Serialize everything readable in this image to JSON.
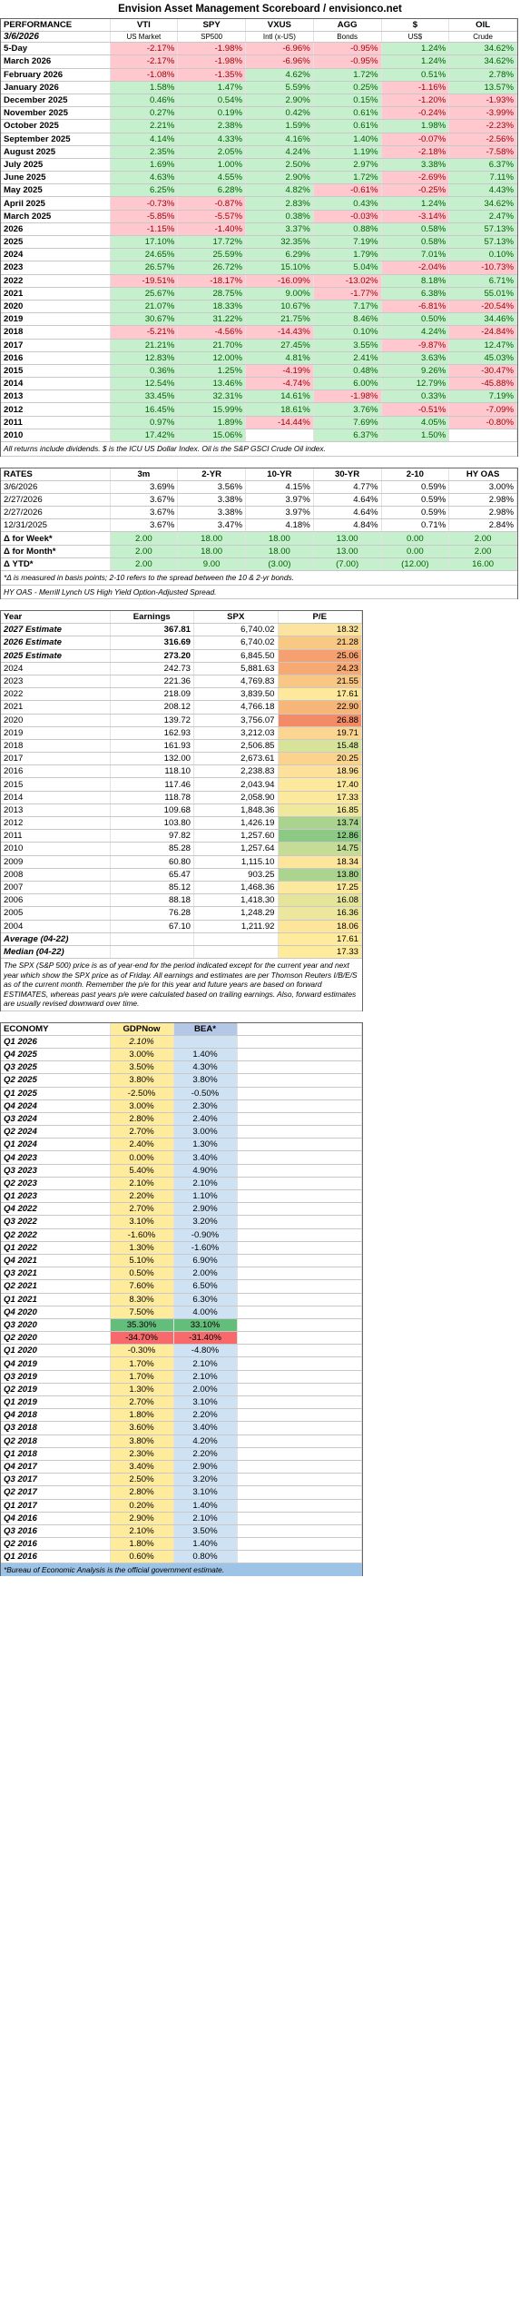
{
  "title": "Envision Asset Management Scoreboard / envisionco.net",
  "performance": {
    "headers": [
      "PERFORMANCE",
      "VTI",
      "SPY",
      "VXUS",
      "AGG",
      "$",
      "OIL"
    ],
    "subheaders": [
      "3/6/2026",
      "US Market",
      "SP500",
      "Intl (x-US)",
      "Bonds",
      "US$",
      "Crude"
    ],
    "rows": [
      [
        "5-Day",
        "-2.17%",
        "-1.98%",
        "-6.96%",
        "-0.95%",
        "1.24%",
        "34.62%"
      ],
      [
        "March 2026",
        "-2.17%",
        "-1.98%",
        "-6.96%",
        "-0.95%",
        "1.24%",
        "34.62%"
      ],
      [
        "February 2026",
        "-1.08%",
        "-1.35%",
        "4.62%",
        "1.72%",
        "0.51%",
        "2.78%"
      ],
      [
        "January 2026",
        "1.58%",
        "1.47%",
        "5.59%",
        "0.25%",
        "-1.16%",
        "13.57%"
      ],
      [
        "December 2025",
        "0.46%",
        "0.54%",
        "2.90%",
        "0.15%",
        "-1.20%",
        "-1.93%"
      ],
      [
        "November 2025",
        "0.27%",
        "0.19%",
        "0.42%",
        "0.61%",
        "-0.24%",
        "-3.99%"
      ],
      [
        "October 2025",
        "2.21%",
        "2.38%",
        "1.59%",
        "0.61%",
        "1.98%",
        "-2.23%"
      ],
      [
        "September 2025",
        "4.14%",
        "4.33%",
        "4.16%",
        "1.40%",
        "-0.07%",
        "-2.56%"
      ],
      [
        "August 2025",
        "2.35%",
        "2.05%",
        "4.24%",
        "1.19%",
        "-2.18%",
        "-7.58%"
      ],
      [
        "July 2025",
        "1.69%",
        "1.00%",
        "2.50%",
        "2.97%",
        "3.38%",
        "6.37%"
      ],
      [
        "June 2025",
        "4.63%",
        "4.55%",
        "2.90%",
        "1.72%",
        "-2.69%",
        "7.11%"
      ],
      [
        "May 2025",
        "6.25%",
        "6.28%",
        "4.82%",
        "-0.61%",
        "-0.25%",
        "4.43%"
      ],
      [
        "April 2025",
        "-0.73%",
        "-0.87%",
        "2.83%",
        "0.43%",
        "1.24%",
        "34.62%"
      ],
      [
        "March 2025",
        "-5.85%",
        "-5.57%",
        "0.38%",
        "-0.03%",
        "-3.14%",
        "2.47%"
      ],
      [
        "2026",
        "-1.15%",
        "-1.40%",
        "3.37%",
        "0.88%",
        "0.58%",
        "57.13%"
      ],
      [
        "2025",
        "17.10%",
        "17.72%",
        "32.35%",
        "7.19%",
        "0.58%",
        "57.13%"
      ],
      [
        "2024",
        "24.65%",
        "25.59%",
        "6.29%",
        "1.79%",
        "7.01%",
        "0.10%"
      ],
      [
        "2023",
        "26.57%",
        "26.72%",
        "15.10%",
        "5.04%",
        "-2.04%",
        "-10.73%"
      ],
      [
        "2022",
        "-19.51%",
        "-18.17%",
        "-16.09%",
        "-13.02%",
        "8.18%",
        "6.71%"
      ],
      [
        "2021",
        "25.67%",
        "28.75%",
        "9.00%",
        "-1.77%",
        "6.38%",
        "55.01%"
      ],
      [
        "2020",
        "21.07%",
        "18.33%",
        "10.67%",
        "7.17%",
        "-6.81%",
        "-20.54%"
      ],
      [
        "2019",
        "30.67%",
        "31.22%",
        "21.75%",
        "8.46%",
        "0.50%",
        "34.46%"
      ],
      [
        "2018",
        "-5.21%",
        "-4.56%",
        "-14.43%",
        "0.10%",
        "4.24%",
        "-24.84%"
      ],
      [
        "2017",
        "21.21%",
        "21.70%",
        "27.45%",
        "3.55%",
        "-9.87%",
        "12.47%"
      ],
      [
        "2016",
        "12.83%",
        "12.00%",
        "4.81%",
        "2.41%",
        "3.63%",
        "45.03%"
      ],
      [
        "2015",
        "0.36%",
        "1.25%",
        "-4.19%",
        "0.48%",
        "9.26%",
        "-30.47%"
      ],
      [
        "2014",
        "12.54%",
        "13.46%",
        "-4.74%",
        "6.00%",
        "12.79%",
        "-45.88%"
      ],
      [
        "2013",
        "33.45%",
        "32.31%",
        "14.61%",
        "-1.98%",
        "0.33%",
        "7.19%"
      ],
      [
        "2012",
        "16.45%",
        "15.99%",
        "18.61%",
        "3.76%",
        "-0.51%",
        "-7.09%"
      ],
      [
        "2011",
        "0.97%",
        "1.89%",
        "-14.44%",
        "7.69%",
        "4.05%",
        "-0.80%"
      ],
      [
        "2010",
        "17.42%",
        "15.06%",
        "",
        "6.37%",
        "1.50%",
        ""
      ]
    ],
    "note": "All returns include dividends. $ is the ICU US Dollar Index. Oil is the S&P GSCI Crude Oil index."
  },
  "rates": {
    "headers": [
      "RATES",
      "3m",
      "2-YR",
      "10-YR",
      "30-YR",
      "2-10",
      "HY OAS"
    ],
    "rows": [
      [
        "3/6/2026",
        "3.69%",
        "3.56%",
        "4.15%",
        "4.77%",
        "0.59%",
        "3.00%"
      ],
      [
        "2/27/2026",
        "3.67%",
        "3.38%",
        "3.97%",
        "4.64%",
        "0.59%",
        "2.98%"
      ],
      [
        "2/27/2026",
        "3.67%",
        "3.38%",
        "3.97%",
        "4.64%",
        "0.59%",
        "2.98%"
      ],
      [
        "12/31/2025",
        "3.67%",
        "3.47%",
        "4.18%",
        "4.84%",
        "0.71%",
        "2.84%"
      ]
    ],
    "delta_rows": [
      [
        "Δ for Week*",
        "2.00",
        "18.00",
        "18.00",
        "13.00",
        "0.00",
        "2.00"
      ],
      [
        "Δ for Month*",
        "2.00",
        "18.00",
        "18.00",
        "13.00",
        "0.00",
        "2.00"
      ],
      [
        "Δ YTD*",
        "2.00",
        "9.00",
        "(3.00)",
        "(7.00)",
        "(12.00)",
        "16.00"
      ]
    ],
    "note1": "*Δ is measured in basis points; 2-10 refers to the spread between the 10 & 2-yr bonds.",
    "note2": "HY OAS - Merrill Lynch US High Yield Option-Adjusted Spread."
  },
  "earnings": {
    "headers": [
      "Year",
      "Earnings",
      "SPX",
      "P/E"
    ],
    "rows": [
      [
        "2027 Estimate",
        "367.81",
        "6,740.02",
        "18.32",
        "#fbe4a0",
        true
      ],
      [
        "2026 Estimate",
        "316.69",
        "6,740.02",
        "21.28",
        "#f9c984",
        true
      ],
      [
        "2025 Estimate",
        "273.20",
        "6,845.50",
        "25.06",
        "#f5a06e",
        true
      ],
      [
        "2024",
        "242.73",
        "5,881.63",
        "24.23",
        "#f6a972",
        false
      ],
      [
        "2023",
        "221.36",
        "4,769.83",
        "21.55",
        "#f9c784",
        false
      ],
      [
        "2022",
        "218.09",
        "3,839.50",
        "17.61",
        "#fde89c",
        false
      ],
      [
        "2021",
        "208.12",
        "4,766.18",
        "22.90",
        "#f7b679",
        false
      ],
      [
        "2020",
        "139.72",
        "3,756.07",
        "26.88",
        "#f28b66",
        false
      ],
      [
        "2019",
        "162.93",
        "3,212.03",
        "19.71",
        "#fcd690",
        false
      ],
      [
        "2018",
        "161.93",
        "2,506.85",
        "15.48",
        "#d8e39a",
        false
      ],
      [
        "2017",
        "132.00",
        "2,673.61",
        "20.25",
        "#fbd38e",
        false
      ],
      [
        "2016",
        "118.10",
        "2,238.83",
        "18.96",
        "#fde19a",
        false
      ],
      [
        "2015",
        "117.46",
        "2,043.94",
        "17.40",
        "#fde99d",
        false
      ],
      [
        "2014",
        "118.78",
        "2,058.90",
        "17.33",
        "#fde99d",
        false
      ],
      [
        "2013",
        "109.68",
        "1,848.36",
        "16.85",
        "#f0e89c",
        false
      ],
      [
        "2012",
        "103.80",
        "1,426.19",
        "13.74",
        "#a9d38e",
        false
      ],
      [
        "2011",
        "97.82",
        "1,257.60",
        "12.86",
        "#8cc985",
        false
      ],
      [
        "2010",
        "85.28",
        "1,257.64",
        "14.75",
        "#c4dc95",
        false
      ],
      [
        "2009",
        "60.80",
        "1,115.10",
        "18.34",
        "#fde59c",
        false
      ],
      [
        "2008",
        "65.47",
        "903.25",
        "13.80",
        "#abd48f",
        false
      ],
      [
        "2007",
        "85.12",
        "1,468.36",
        "17.25",
        "#fde99d",
        false
      ],
      [
        "2006",
        "88.18",
        "1,418.30",
        "16.08",
        "#e5e49b",
        false
      ],
      [
        "2005",
        "76.28",
        "1,248.29",
        "16.36",
        "#ece79c",
        false
      ],
      [
        "2004",
        "67.10",
        "1,211.92",
        "18.06",
        "#fde59c",
        false
      ]
    ],
    "average_label": "Average (04-22)",
    "average_value": "17.61",
    "median_label": "Median (04-22)",
    "median_value": "17.33",
    "note": "The SPX (S&P 500) price is as of year-end for the period indicated except for the current year and next year which show the SPX price as of Friday. All earnings and estimates are per Thomson Reuters I/B/E/S as of the current month. Remember the p/e for this year and future years are based on forward ESTIMATES, whereas past years p/e were calculated based on trailing earnings. Also, forward estimates are usually revised downward over time."
  },
  "economy": {
    "headers": [
      "ECONOMY",
      "GDPNow",
      "BEA*"
    ],
    "rows": [
      [
        "Q1 2026",
        "2.10%",
        ""
      ],
      [
        "Q4 2025",
        "3.00%",
        "1.40%"
      ],
      [
        "Q3 2025",
        "3.50%",
        "4.30%"
      ],
      [
        "Q2 2025",
        "3.80%",
        "3.80%"
      ],
      [
        "Q1 2025",
        "-2.50%",
        "-0.50%"
      ],
      [
        "Q4 2024",
        "3.00%",
        "2.30%"
      ],
      [
        "Q3 2024",
        "2.80%",
        "2.40%"
      ],
      [
        "Q2 2024",
        "2.70%",
        "3.00%"
      ],
      [
        "Q1 2024",
        "2.40%",
        "1.30%"
      ],
      [
        "Q4 2023",
        "0.00%",
        "3.40%"
      ],
      [
        "Q3 2023",
        "5.40%",
        "4.90%"
      ],
      [
        "Q2 2023",
        "2.10%",
        "2.10%"
      ],
      [
        "Q1 2023",
        "2.20%",
        "1.10%"
      ],
      [
        "Q4 2022",
        "2.70%",
        "2.90%"
      ],
      [
        "Q3 2022",
        "3.10%",
        "3.20%"
      ],
      [
        "Q2 2022",
        "-1.60%",
        "-0.90%"
      ],
      [
        "Q1 2022",
        "1.30%",
        "-1.60%"
      ],
      [
        "Q4 2021",
        "5.10%",
        "6.90%"
      ],
      [
        "Q3 2021",
        "0.50%",
        "2.00%"
      ],
      [
        "Q2 2021",
        "7.60%",
        "6.50%"
      ],
      [
        "Q1 2021",
        "8.30%",
        "6.30%"
      ],
      [
        "Q4 2020",
        "7.50%",
        "4.00%"
      ],
      [
        "Q3 2020",
        "35.30%",
        "33.10%"
      ],
      [
        "Q2 2020",
        "-34.70%",
        "-31.40%"
      ],
      [
        "Q1 2020",
        "-0.30%",
        "-4.80%"
      ],
      [
        "Q4 2019",
        "1.70%",
        "2.10%"
      ],
      [
        "Q3 2019",
        "1.70%",
        "2.10%"
      ],
      [
        "Q2 2019",
        "1.30%",
        "2.00%"
      ],
      [
        "Q1 2019",
        "2.70%",
        "3.10%"
      ],
      [
        "Q4 2018",
        "1.80%",
        "2.20%"
      ],
      [
        "Q3 2018",
        "3.60%",
        "3.40%"
      ],
      [
        "Q2 2018",
        "3.80%",
        "4.20%"
      ],
      [
        "Q1 2018",
        "2.30%",
        "2.20%"
      ],
      [
        "Q4 2017",
        "3.40%",
        "2.90%"
      ],
      [
        "Q3 2017",
        "2.50%",
        "3.20%"
      ],
      [
        "Q2 2017",
        "2.80%",
        "3.10%"
      ],
      [
        "Q1 2017",
        "0.20%",
        "1.40%"
      ],
      [
        "Q4 2016",
        "2.90%",
        "2.10%"
      ],
      [
        "Q3 2016",
        "2.10%",
        "3.50%"
      ],
      [
        "Q2 2016",
        "1.80%",
        "1.40%"
      ],
      [
        "Q1 2016",
        "0.60%",
        "0.80%"
      ]
    ],
    "footer": "*Bureau of Economic Analysis is the official government estimate."
  }
}
